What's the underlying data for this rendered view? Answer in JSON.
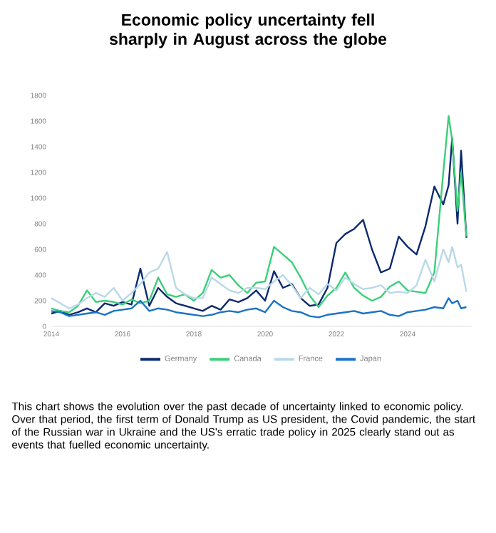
{
  "chart_data": {
    "type": "line",
    "title": "Economic policy uncertainty fell sharply in August across the globe",
    "annotations": [
      "This chart shows the evolution over the past decade of uncertainty linked to economic policy. Over that period, the first term of Donald Trump as US president, the Covid pandemic, the start of the Russian war in Ukraine and the US's erratic trade policy in 2025 clearly stand out as events that fuelled economic uncertainty."
    ],
    "x": [
      2014,
      2014.25,
      2014.5,
      2014.75,
      2015,
      2015.25,
      2015.5,
      2015.75,
      2016,
      2016.25,
      2016.5,
      2016.75,
      2017,
      2017.25,
      2017.5,
      2017.75,
      2018,
      2018.25,
      2018.5,
      2018.75,
      2019,
      2019.25,
      2019.5,
      2019.75,
      2020,
      2020.25,
      2020.5,
      2020.75,
      2021,
      2021.25,
      2021.5,
      2021.75,
      2022,
      2022.25,
      2022.5,
      2022.75,
      2023,
      2023.25,
      2023.5,
      2023.75,
      2024,
      2024.25,
      2024.5,
      2024.75,
      2025,
      2025.15,
      2025.25,
      2025.4,
      2025.5,
      2025.65
    ],
    "series": [
      {
        "name": "Germany",
        "color": "#0b2a6f",
        "values": [
          100,
          120,
          90,
          110,
          140,
          110,
          180,
          160,
          190,
          170,
          450,
          160,
          300,
          230,
          180,
          160,
          140,
          120,
          160,
          130,
          210,
          190,
          220,
          280,
          200,
          430,
          300,
          330,
          220,
          160,
          170,
          300,
          650,
          720,
          760,
          830,
          600,
          420,
          450,
          700,
          620,
          560,
          780,
          1090,
          950,
          1100,
          1470,
          800,
          1370,
          690
        ]
      },
      {
        "name": "Canada",
        "color": "#3ccf78",
        "values": [
          140,
          120,
          110,
          160,
          280,
          190,
          200,
          190,
          170,
          210,
          180,
          200,
          380,
          250,
          230,
          250,
          200,
          260,
          440,
          380,
          400,
          320,
          260,
          340,
          350,
          620,
          560,
          500,
          380,
          240,
          150,
          240,
          300,
          420,
          300,
          240,
          200,
          230,
          310,
          350,
          280,
          270,
          260,
          420,
          1200,
          1640,
          1450,
          900,
          1200,
          700
        ]
      },
      {
        "name": "France",
        "color": "#b9d9e8",
        "values": [
          220,
          180,
          140,
          170,
          220,
          260,
          230,
          300,
          200,
          260,
          330,
          420,
          450,
          580,
          300,
          250,
          220,
          220,
          380,
          330,
          280,
          260,
          300,
          300,
          290,
          350,
          400,
          320,
          220,
          300,
          250,
          330,
          280,
          380,
          330,
          290,
          300,
          320,
          260,
          270,
          260,
          320,
          520,
          350,
          600,
          500,
          620,
          460,
          480,
          270
        ]
      },
      {
        "name": "Japan",
        "color": "#1a73c4",
        "values": [
          120,
          110,
          80,
          90,
          100,
          110,
          90,
          120,
          130,
          140,
          200,
          120,
          140,
          130,
          110,
          100,
          90,
          80,
          90,
          110,
          120,
          110,
          130,
          140,
          110,
          200,
          150,
          120,
          110,
          80,
          70,
          90,
          100,
          110,
          120,
          100,
          110,
          120,
          90,
          80,
          110,
          120,
          130,
          150,
          140,
          220,
          180,
          200,
          140,
          150
        ]
      }
    ],
    "xlim": [
      2014,
      2025.8
    ],
    "xticks": [
      2014,
      2016,
      2018,
      2020,
      2022,
      2024
    ],
    "ylim": [
      0,
      1800
    ],
    "yticks": [
      0,
      200,
      400,
      600,
      800,
      1000,
      1200,
      1400,
      1600,
      1800
    ],
    "legend": "bottom",
    "line_style": "solid"
  }
}
